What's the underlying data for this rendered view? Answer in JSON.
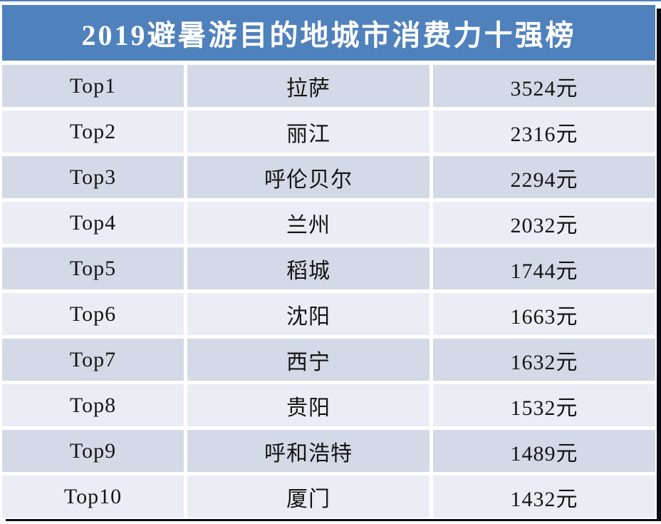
{
  "header": {
    "title": "2019避暑游目的地城市消费力十强榜"
  },
  "chart_data": {
    "type": "table",
    "title": "2019避暑游目的地城市消费力十强榜",
    "unit": "元",
    "rows": [
      {
        "rank": "Top1",
        "city": "拉萨",
        "value": "3524元"
      },
      {
        "rank": "Top2",
        "city": "丽江",
        "value": "2316元"
      },
      {
        "rank": "Top3",
        "city": "呼伦贝尔",
        "value": "2294元"
      },
      {
        "rank": "Top4",
        "city": "兰州",
        "value": "2032元"
      },
      {
        "rank": "Top5",
        "city": "稻城",
        "value": "1744元"
      },
      {
        "rank": "Top6",
        "city": "沈阳",
        "value": "1663元"
      },
      {
        "rank": "Top7",
        "city": "西宁",
        "value": "1632元"
      },
      {
        "rank": "Top8",
        "city": "贵阳",
        "value": "1532元"
      },
      {
        "rank": "Top9",
        "city": "呼和浩特",
        "value": "1489元"
      },
      {
        "rank": "Top10",
        "city": "厦门",
        "value": "1432元"
      }
    ],
    "values_numeric": [
      3524,
      2316,
      2294,
      2032,
      1744,
      1663,
      1632,
      1532,
      1489,
      1432
    ]
  },
  "colors": {
    "header_bg": "#4F81BD",
    "title_text": "#FFFFFF",
    "row_band_dark": "#D3D9E6",
    "row_band_light": "#EAEDF4",
    "body_text": "#141414",
    "top_border": "#4F81BD",
    "shadow": "#0B0C12",
    "background": "#FFFFFF"
  }
}
